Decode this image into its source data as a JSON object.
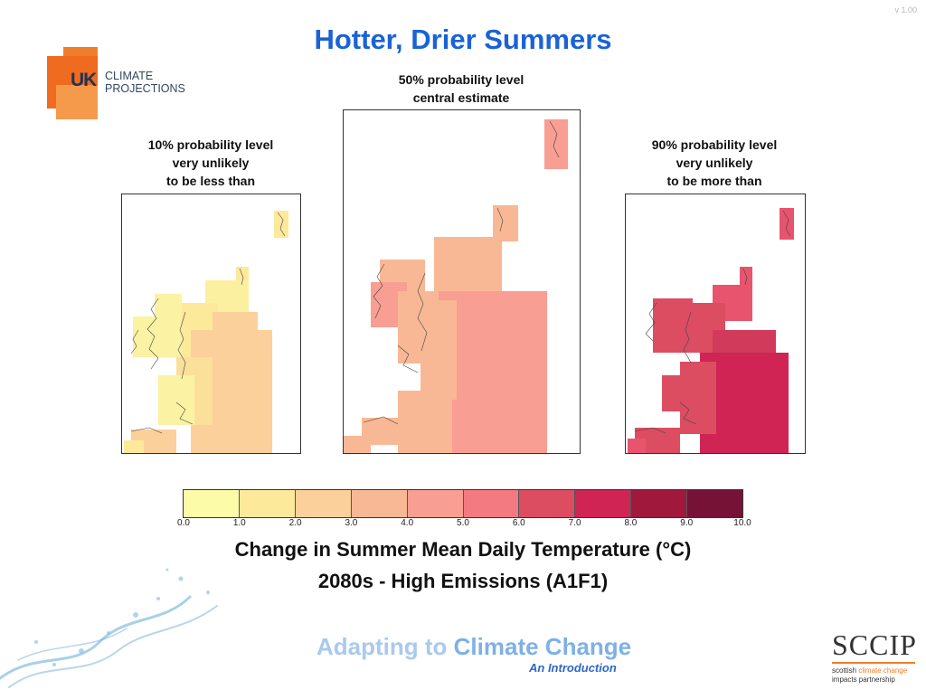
{
  "version": "v 1.00",
  "title": "Hotter, Drier Summers",
  "logo": {
    "uk": "UK",
    "line1": "CLIMATE",
    "line2": "PROJECTIONS"
  },
  "maps": [
    {
      "line1": "10% probability level",
      "line2": "very unlikely",
      "line3": "to be less than"
    },
    {
      "line1": "50% probability level",
      "line2": "central estimate",
      "line3": ""
    },
    {
      "line1": "90% probability level",
      "line2": "very unlikely",
      "line3": "to be more than"
    }
  ],
  "colorbar": {
    "ticks": [
      "0.0",
      "1.0",
      "2.0",
      "3.0",
      "4.0",
      "5.0",
      "6.0",
      "7.0",
      "8.0",
      "9.0",
      "10.0"
    ],
    "colors": [
      "#fbfba8",
      "#fde99a",
      "#fbd09a",
      "#f9b895",
      "#f89e93",
      "#f37a80",
      "#dc4d62",
      "#cf2454",
      "#a0183b",
      "#761236"
    ]
  },
  "subtitle": {
    "line1": "Change in Summer Mean Daily Temperature (°C)",
    "line2": "2080s - High Emissions (A1F1)"
  },
  "footer": {
    "adapting": "Adapting to",
    "climate_change": "Climate Change",
    "intro": "An Introduction",
    "sccip": "SCCIP",
    "sccip_scottish": "scottish",
    "sccip_climate": "climate change",
    "sccip_line2": "impacts partnership"
  },
  "icons": {
    "logo": "uk-climate-projections-logo",
    "splash": "water-splash-icon",
    "sccip": "sccip-logo"
  }
}
